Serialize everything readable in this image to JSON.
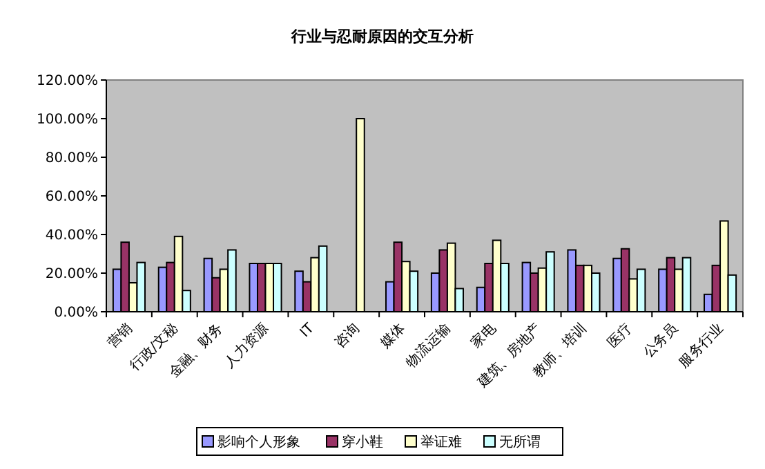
{
  "chart_data": {
    "type": "bar",
    "title": "行业与忍耐原因的交互分析",
    "categories": [
      "营销",
      "行政/文秘",
      "金融、财务",
      "人力资源",
      "IT",
      "咨询",
      "媒体",
      "物流运输",
      "家电",
      "建筑、房地产",
      "教师、培训",
      "医疗",
      "公务员",
      "服务行业"
    ],
    "series": [
      {
        "name": "影响个人形象",
        "color": "#9999ff",
        "values": [
          22,
          23,
          27.6,
          25,
          21,
          0,
          15.5,
          20,
          12.6,
          25.5,
          32,
          27.6,
          22,
          9
        ]
      },
      {
        "name": "穿小鞋",
        "color": "#993366",
        "values": [
          36,
          25.5,
          17.6,
          25,
          15.5,
          0,
          36,
          32,
          25,
          20,
          24,
          32.6,
          28,
          24
        ]
      },
      {
        "name": "举证难",
        "color": "#ffffcc",
        "values": [
          15,
          39,
          22,
          25,
          28,
          100,
          26,
          35.5,
          37,
          22.6,
          24,
          17,
          22,
          47
        ]
      },
      {
        "name": "无所谓",
        "color": "#ccffff",
        "values": [
          25.5,
          11,
          32,
          25,
          34,
          0,
          21,
          12,
          25,
          31,
          20,
          22,
          28,
          19
        ]
      }
    ],
    "ylim": [
      0,
      120
    ],
    "yticks": [
      {
        "value": 0,
        "label": "0.00%"
      },
      {
        "value": 20,
        "label": "20.00%"
      },
      {
        "value": 40,
        "label": "40.00%"
      },
      {
        "value": 60,
        "label": "60.00%"
      },
      {
        "value": 80,
        "label": "80.00%"
      },
      {
        "value": 100,
        "label": "100.00%"
      },
      {
        "value": 120,
        "label": "120.00%"
      }
    ],
    "grid": false,
    "legend": "bottom"
  }
}
